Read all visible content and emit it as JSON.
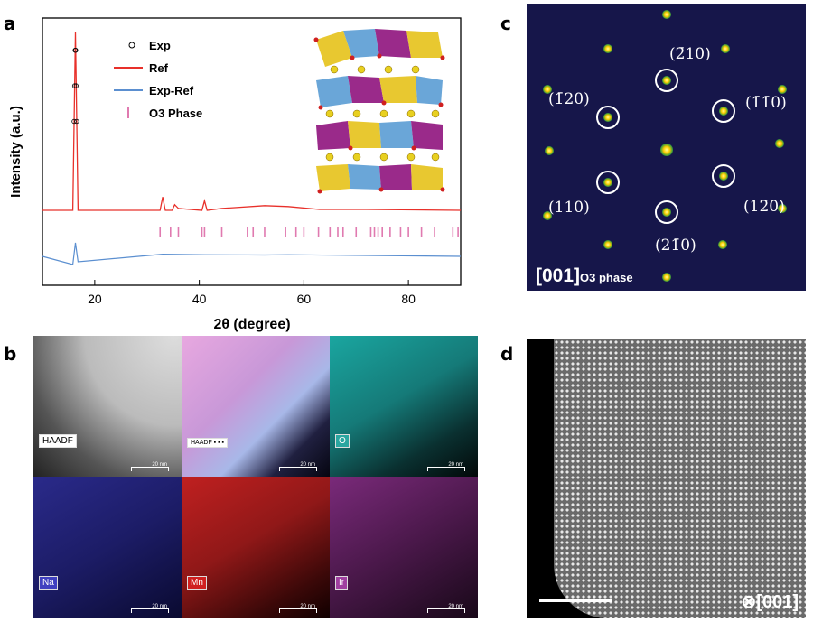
{
  "panel_labels": {
    "a": "a",
    "b": "b",
    "c": "c",
    "d": "d"
  },
  "chart_data": {
    "type": "line",
    "xlabel": "2θ (degree)",
    "ylabel": "Intensity (a.u.)",
    "xlim": [
      10,
      90
    ],
    "x_ticks": [
      "20",
      "40",
      "60",
      "80"
    ],
    "legend": [
      "Exp",
      "Ref",
      "Exp-Ref",
      "O3 Phase"
    ],
    "legend_position": "top-left",
    "colors": {
      "Exp": "#000000",
      "Ref": "#e8302a",
      "Exp-Ref": "#5b8fd0",
      "O3 Phase": "#e07ab0"
    },
    "series": [
      {
        "name": "Ref",
        "x": [
          10,
          15.8,
          16.3,
          16.8,
          32.5,
          33.0,
          33.5,
          34.8,
          35.3,
          36.0,
          40.5,
          41.0,
          41.5,
          44.3,
          52.5,
          57.0,
          63,
          66,
          70,
          72,
          90
        ],
        "y": [
          0.06,
          0.06,
          1.0,
          0.06,
          0.06,
          0.13,
          0.06,
          0.06,
          0.09,
          0.07,
          0.06,
          0.11,
          0.06,
          0.07,
          0.085,
          0.08,
          0.065,
          0.065,
          0.065,
          0.065,
          0.06
        ]
      },
      {
        "name": "Exp-Ref",
        "x": [
          10,
          15.8,
          16.3,
          16.8,
          33,
          41,
          52.5,
          57,
          90
        ],
        "y": [
          0,
          -0.03,
          0.05,
          -0.02,
          0.008,
          0.006,
          0.005,
          0.006,
          0
        ]
      }
    ],
    "o3_phase_positions": [
      32.5,
      34.5,
      36.0,
      40.5,
      41.0,
      44.3,
      49.2,
      50.3,
      52.5,
      56.5,
      58.5,
      60.0,
      62.8,
      65.0,
      66.5,
      67.5,
      70.0,
      72.8,
      73.5,
      74.2,
      75.0,
      76.5,
      78.5,
      80.0,
      82.5,
      85.0,
      88.5,
      89.5
    ]
  },
  "diffraction": {
    "zone_axis_main": "[001]",
    "zone_axis_sub": "O3 phase",
    "labels": {
      "m210": "(2̄10)",
      "m120": "(1̄20)",
      "m110": "(1̄1̄0)",
      "p110": "(110)",
      "p120": "(12̄0)",
      "p210": "(21̄0)"
    }
  },
  "eds": {
    "tiles": [
      {
        "label": "HAADF",
        "scale": "20 nm"
      },
      {
        "label": "",
        "scale": "20 nm"
      },
      {
        "label": "O",
        "scale": "20 nm"
      },
      {
        "label": "Na",
        "scale": "20 nm"
      },
      {
        "label": "Mn",
        "scale": "20 nm"
      },
      {
        "label": "Ir",
        "scale": "20 nm"
      }
    ]
  },
  "stem": {
    "zone_axis": "⊗[001]"
  }
}
